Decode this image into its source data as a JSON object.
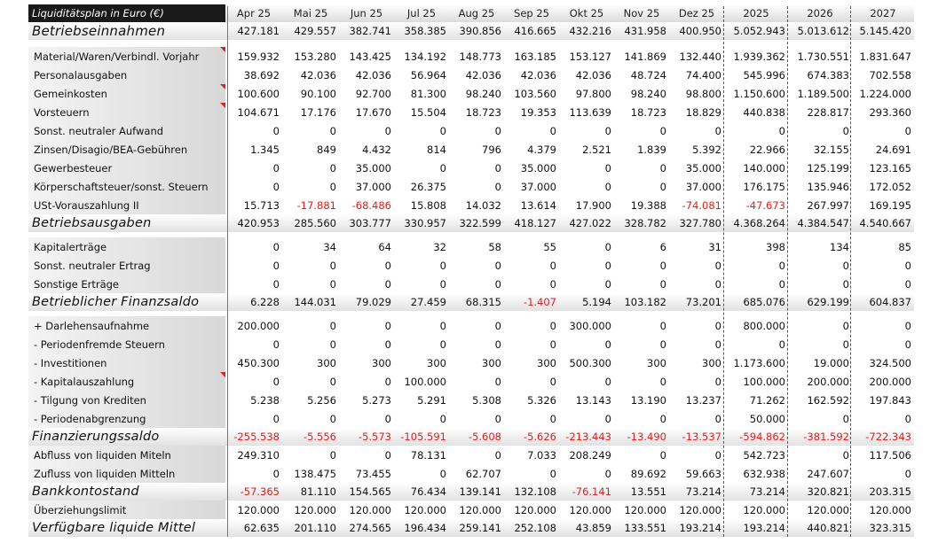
{
  "header": {
    "title": "Liquiditätsplan in Euro (€)",
    "columns": [
      "Apr 25",
      "Mai 25",
      "Jun 25",
      "Jul 25",
      "Aug 25",
      "Sep 25",
      "Okt 25",
      "Nov 25",
      "Dez 25",
      "2025",
      "2026",
      "2027"
    ]
  },
  "rows": [
    {
      "type": "total",
      "label": "Betriebseinnahmen",
      "values": [
        "427.181",
        "429.557",
        "382.741",
        "358.385",
        "390.856",
        "416.665",
        "432.216",
        "431.958",
        "400.950",
        "5.052.943",
        "5.013.612",
        "5.145.420"
      ]
    },
    {
      "type": "gap"
    },
    {
      "type": "detail",
      "label": "Material/Waren/Verbindl. Vorjahr",
      "marker": true,
      "values": [
        "159.932",
        "153.280",
        "143.425",
        "134.192",
        "148.773",
        "163.185",
        "153.127",
        "141.869",
        "132.440",
        "1.939.362",
        "1.730.551",
        "1.831.647"
      ]
    },
    {
      "type": "detail",
      "label": "Personalausgaben",
      "values": [
        "38.692",
        "42.036",
        "42.036",
        "56.964",
        "42.036",
        "42.036",
        "42.036",
        "48.724",
        "74.400",
        "545.996",
        "674.383",
        "702.558"
      ]
    },
    {
      "type": "detail",
      "label": "Gemeinkosten",
      "marker": true,
      "values": [
        "100.600",
        "90.100",
        "92.700",
        "81.300",
        "98.240",
        "103.560",
        "97.800",
        "98.240",
        "98.800",
        "1.150.600",
        "1.189.500",
        "1.224.000"
      ]
    },
    {
      "type": "detail",
      "label": "Vorsteuern",
      "marker": true,
      "values": [
        "104.671",
        "17.176",
        "17.670",
        "15.504",
        "18.723",
        "19.353",
        "113.639",
        "18.723",
        "18.829",
        "440.838",
        "228.817",
        "293.360"
      ]
    },
    {
      "type": "detail",
      "label": "Sonst. neutraler Aufwand",
      "values": [
        "0",
        "0",
        "0",
        "0",
        "0",
        "0",
        "0",
        "0",
        "0",
        "0",
        "0",
        "0"
      ]
    },
    {
      "type": "detail",
      "label": "Zinsen/Disagio/BEA-Gebühren",
      "values": [
        "1.345",
        "849",
        "4.432",
        "814",
        "796",
        "4.379",
        "2.521",
        "1.839",
        "5.392",
        "22.966",
        "32.155",
        "24.691"
      ]
    },
    {
      "type": "detail",
      "label": "Gewerbesteuer",
      "values": [
        "0",
        "0",
        "35.000",
        "0",
        "0",
        "35.000",
        "0",
        "0",
        "35.000",
        "140.000",
        "125.199",
        "123.165"
      ]
    },
    {
      "type": "detail",
      "label": "Körperschaftsteuer/sonst. Steuern",
      "values": [
        "0",
        "0",
        "37.000",
        "26.375",
        "0",
        "37.000",
        "0",
        "0",
        "37.000",
        "176.175",
        "135.946",
        "172.052"
      ]
    },
    {
      "type": "detail",
      "label": "USt-Vorauszahlung II",
      "values": [
        "15.713",
        "-17.881",
        "-68.486",
        "15.808",
        "14.032",
        "13.614",
        "17.900",
        "19.388",
        "-74.081",
        "-47.673",
        "267.997",
        "169.195"
      ]
    },
    {
      "type": "total",
      "label": "Betriebsausgaben",
      "values": [
        "420.953",
        "285.560",
        "303.777",
        "330.957",
        "322.599",
        "418.127",
        "427.022",
        "328.782",
        "327.780",
        "4.368.264",
        "4.384.547",
        "4.540.667"
      ]
    },
    {
      "type": "gap"
    },
    {
      "type": "detail",
      "label": "Kapitalerträge",
      "values": [
        "0",
        "34",
        "64",
        "32",
        "58",
        "55",
        "0",
        "6",
        "31",
        "398",
        "134",
        "85"
      ]
    },
    {
      "type": "detail",
      "label": "Sonst. neutraler Ertrag",
      "values": [
        "0",
        "0",
        "0",
        "0",
        "0",
        "0",
        "0",
        "0",
        "0",
        "0",
        "0",
        "0"
      ]
    },
    {
      "type": "detail",
      "label": "Sonstige Erträge",
      "values": [
        "0",
        "0",
        "0",
        "0",
        "0",
        "0",
        "0",
        "0",
        "0",
        "0",
        "0",
        "0"
      ]
    },
    {
      "type": "total",
      "label": "Betrieblicher Finanzsaldo",
      "values": [
        "6.228",
        "144.031",
        "79.029",
        "27.459",
        "68.315",
        "-1.407",
        "5.194",
        "103.182",
        "73.201",
        "685.076",
        "629.199",
        "604.837"
      ]
    },
    {
      "type": "gap"
    },
    {
      "type": "detail",
      "label": "+ Darlehensaufnahme",
      "values": [
        "200.000",
        "0",
        "0",
        "0",
        "0",
        "0",
        "300.000",
        "0",
        "0",
        "800.000",
        "0",
        "0"
      ]
    },
    {
      "type": "detail",
      "label": "- Periodenfremde Steuern",
      "values": [
        "0",
        "0",
        "0",
        "0",
        "0",
        "0",
        "0",
        "0",
        "0",
        "0",
        "0",
        "0"
      ]
    },
    {
      "type": "detail",
      "label": "- Investitionen",
      "values": [
        "450.300",
        "300",
        "300",
        "300",
        "300",
        "300",
        "500.300",
        "300",
        "300",
        "1.173.600",
        "19.000",
        "324.500"
      ]
    },
    {
      "type": "detail",
      "label": "- Kapitalauszahlung",
      "marker": true,
      "values": [
        "0",
        "0",
        "0",
        "100.000",
        "0",
        "0",
        "0",
        "0",
        "0",
        "100.000",
        "200.000",
        "200.000"
      ]
    },
    {
      "type": "detail",
      "label": "- Tilgung von Krediten",
      "values": [
        "5.238",
        "5.256",
        "5.273",
        "5.291",
        "5.308",
        "5.326",
        "13.143",
        "13.190",
        "13.237",
        "71.262",
        "162.592",
        "197.843"
      ]
    },
    {
      "type": "detail",
      "label": "- Periodenabgrenzung",
      "values": [
        "0",
        "0",
        "0",
        "0",
        "0",
        "0",
        "0",
        "0",
        "0",
        "50.000",
        "0",
        "0"
      ]
    },
    {
      "type": "total",
      "label": "Finanzierungssaldo",
      "values": [
        "-255.538",
        "-5.556",
        "-5.573",
        "-105.591",
        "-5.608",
        "-5.626",
        "-213.443",
        "-13.490",
        "-13.537",
        "-594.862",
        "-381.592",
        "-722.343"
      ]
    },
    {
      "type": "detail",
      "label": "Abfluss von liquiden Miteln",
      "values": [
        "249.310",
        "0",
        "0",
        "78.131",
        "0",
        "7.033",
        "208.249",
        "0",
        "0",
        "542.723",
        "0",
        "117.506"
      ]
    },
    {
      "type": "detail",
      "label": "Zufluss von liquiden Mitteln",
      "values": [
        "0",
        "138.475",
        "73.455",
        "0",
        "62.707",
        "0",
        "0",
        "89.692",
        "59.663",
        "632.938",
        "247.607",
        "0"
      ]
    },
    {
      "type": "total",
      "label": "Bankkontostand",
      "values": [
        "-57.365",
        "81.110",
        "154.565",
        "76.434",
        "139.141",
        "132.108",
        "-76.141",
        "13.551",
        "73.214",
        "73.214",
        "320.821",
        "203.315"
      ]
    },
    {
      "type": "detail",
      "label": "Überziehungslimit",
      "values": [
        "120.000",
        "120.000",
        "120.000",
        "120.000",
        "120.000",
        "120.000",
        "120.000",
        "120.000",
        "120.000",
        "120.000",
        "120.000",
        "120.000"
      ]
    },
    {
      "type": "total",
      "label": "Verfügbare liquide Mittel",
      "values": [
        "62.635",
        "201.110",
        "274.565",
        "196.434",
        "259.141",
        "252.108",
        "43.859",
        "133.551",
        "193.214",
        "193.214",
        "440.821",
        "323.315"
      ]
    }
  ],
  "colors": {
    "negative": "#e0201c",
    "header_label_bg": "#1a1a1a",
    "marker": "#e0201c"
  }
}
